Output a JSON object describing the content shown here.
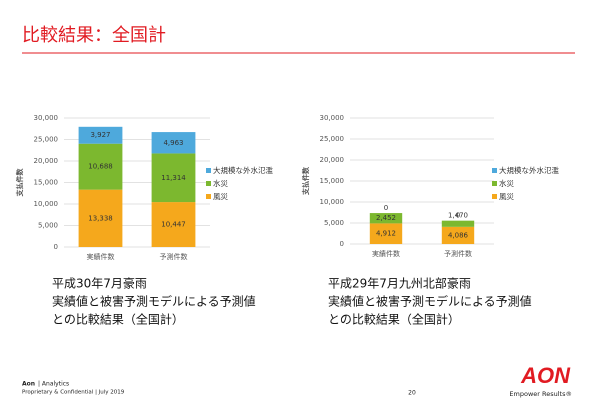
{
  "header": {
    "title": "比較結果：全国計"
  },
  "chart_data": [
    {
      "type": "stacked_bar",
      "ylabel": "支払件数",
      "categories": [
        "実績件数",
        "予測件数"
      ],
      "series": [
        {
          "name": "風災",
          "color": "#f5a81c",
          "values": [
            13338,
            10447
          ],
          "value_labels": [
            "13,338",
            "10,447"
          ]
        },
        {
          "name": "水災",
          "color": "#7cb82f",
          "values": [
            10688,
            11314
          ],
          "value_labels": [
            "10,688",
            "11,314"
          ]
        },
        {
          "name": "大規模な外水氾濫",
          "color": "#4ea9dc",
          "values": [
            3927,
            4963
          ],
          "value_labels": [
            "3,927",
            "4,963"
          ]
        }
      ],
      "ylim": [
        0,
        30000
      ],
      "yticks": [
        0,
        {
          "value": 5000,
          "label": "5,000"
        },
        {
          "value": 10000,
          "label": "10,000"
        },
        {
          "value": 15000,
          "label": "15,000"
        },
        {
          "value": 20000,
          "label": "20,000"
        },
        {
          "value": 25000,
          "label": "25,000"
        },
        {
          "value": 30000,
          "label": "30,000"
        }
      ],
      "grid": true,
      "legend": "right"
    },
    {
      "type": "stacked_bar",
      "ylabel": "支払件数",
      "categories": [
        "実績件数",
        "予測件数"
      ],
      "series": [
        {
          "name": "風災",
          "color": "#f5a81c",
          "values": [
            4912,
            4086
          ],
          "value_labels": [
            "4,912",
            "4,086"
          ]
        },
        {
          "name": "水災",
          "color": "#7cb82f",
          "values": [
            2452,
            1470
          ],
          "value_labels": [
            "2,452",
            "1,470"
          ]
        },
        {
          "name": "大規模な外水氾濫",
          "color": "#4ea9dc",
          "values": [
            0,
            0
          ]
        }
      ],
      "ylim": [
        0,
        30000
      ],
      "yticks": [
        0,
        {
          "value": 5000,
          "label": "5,000"
        },
        {
          "value": 10000,
          "label": "10,000"
        },
        {
          "value": 15000,
          "label": "15,000"
        },
        {
          "value": 20000,
          "label": "20,000"
        },
        {
          "value": 25000,
          "label": "25,000"
        },
        {
          "value": 30000,
          "label": "30,000"
        }
      ],
      "grid": true,
      "legend": "right"
    }
  ],
  "captions": [
    {
      "lines": [
        "平成30年7月豪雨",
        "実績値と被害予測モデルによる予測値",
        "との比較結果（全国計）"
      ]
    },
    {
      "lines": [
        "平成29年7月九州北部豪雨",
        "実績値と被害予測モデルによる予測値",
        "との比較結果（全国計）"
      ]
    }
  ],
  "footer": {
    "company": "Aon",
    "division": "| Analytics",
    "confidential": "Proprietary & Confidential | July 2019",
    "page": "20",
    "logo": "AON",
    "tagline": "Empower Results®"
  }
}
